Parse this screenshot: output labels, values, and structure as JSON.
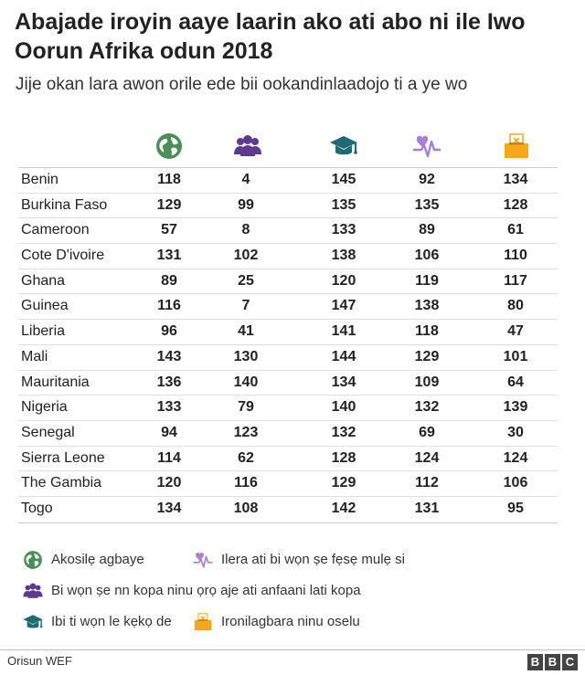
{
  "title": "Abajade iroyin aaye laarin ako ati abo ni ile Iwo Oorun Afrika odun 2018",
  "subtitle": "Jije okan lara awon orile ede bii ookandinlaadojo ti a ye wo",
  "colors": {
    "globe": "#4a8f58",
    "people": "#5d3a8f",
    "education": "#1e6b73",
    "health": "#a87fd4",
    "ballot": "#f4a81d"
  },
  "chart_data": {
    "type": "table",
    "columns": [
      {
        "key": "overall",
        "icon": "globe-icon",
        "label": "Akosilẹ agbaye"
      },
      {
        "key": "economic",
        "icon": "people-icon",
        "label": "Bi wọn ṣe nn kopa ninu ọrọ aje ati anfaani lati kopa"
      },
      {
        "key": "education",
        "icon": "graduation-cap-icon",
        "label": "Ibi ti wọn le kẹkọ de"
      },
      {
        "key": "health",
        "icon": "heart-pulse-icon",
        "label": "Ilera ati bi wọn ṣe fẹsẹ mulẹ si"
      },
      {
        "key": "political",
        "icon": "ballot-box-icon",
        "label": "Ironilagbara ninu oselu"
      }
    ],
    "rows": [
      {
        "country": "Benin",
        "values": [
          118,
          4,
          145,
          92,
          134
        ]
      },
      {
        "country": "Burkina Faso",
        "values": [
          129,
          99,
          135,
          135,
          128
        ]
      },
      {
        "country": "Cameroon",
        "values": [
          57,
          8,
          133,
          89,
          61
        ]
      },
      {
        "country": "Cote D'ivoire",
        "values": [
          131,
          102,
          138,
          106,
          110
        ]
      },
      {
        "country": "Ghana",
        "values": [
          89,
          25,
          120,
          119,
          117
        ]
      },
      {
        "country": "Guinea",
        "values": [
          116,
          7,
          147,
          138,
          80
        ]
      },
      {
        "country": "Liberia",
        "values": [
          96,
          41,
          141,
          118,
          47
        ]
      },
      {
        "country": "Mali",
        "values": [
          143,
          130,
          144,
          129,
          101
        ]
      },
      {
        "country": "Mauritania",
        "values": [
          136,
          140,
          134,
          109,
          64
        ]
      },
      {
        "country": "Nigeria",
        "values": [
          133,
          79,
          140,
          132,
          139
        ]
      },
      {
        "country": "Senegal",
        "values": [
          94,
          123,
          132,
          69,
          30
        ]
      },
      {
        "country": "Sierra Leone",
        "values": [
          114,
          62,
          128,
          124,
          124
        ]
      },
      {
        "country": "The Gambia",
        "values": [
          120,
          116,
          129,
          112,
          106
        ]
      },
      {
        "country": "Togo",
        "values": [
          134,
          108,
          142,
          131,
          95
        ]
      }
    ]
  },
  "source": "Orisun WEF",
  "logo_letters": [
    "B",
    "B",
    "C"
  ]
}
